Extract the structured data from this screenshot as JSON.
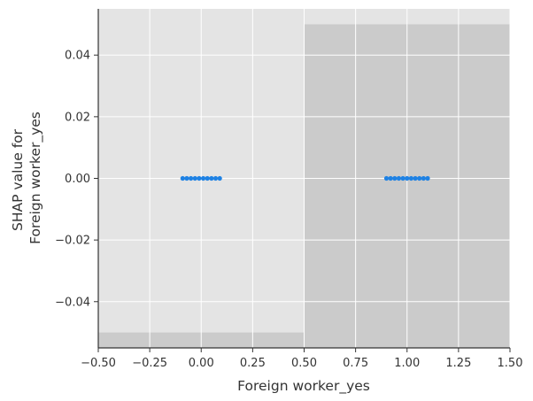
{
  "chart_data": {
    "type": "scatter",
    "title": "",
    "xlabel": "Foreign worker_yes",
    "ylabel": [
      "SHAP value for",
      "Foreign worker_yes"
    ],
    "xlim": [
      -0.5,
      1.5
    ],
    "ylim": [
      -0.055,
      0.055
    ],
    "x_ticks": [
      -0.5,
      -0.25,
      0.0,
      0.25,
      0.5,
      0.75,
      1.0,
      1.25,
      1.5
    ],
    "x_tick_labels": [
      "−0.50",
      "−0.25",
      "0.00",
      "0.25",
      "0.50",
      "0.75",
      "1.00",
      "1.25",
      "1.50"
    ],
    "y_ticks": [
      -0.04,
      -0.02,
      0.0,
      0.02,
      0.04
    ],
    "y_tick_labels": [
      "−0.04",
      "−0.02",
      "0.00",
      "0.02",
      "0.04"
    ],
    "grid": true,
    "point_color": "#1f82e4",
    "background_color": "#e4e4e4",
    "histogram_color": "#cbcbcb",
    "histogram_bins": [
      {
        "x0": -0.5,
        "x1": 0.5,
        "value": -0.05
      },
      {
        "x0": 0.5,
        "x1": 1.5,
        "value": 0.05
      }
    ],
    "series": [
      {
        "points": [
          {
            "x": -0.09,
            "y": 0.0
          },
          {
            "x": -0.07,
            "y": 0.0
          },
          {
            "x": -0.05,
            "y": 0.0
          },
          {
            "x": -0.03,
            "y": 0.0
          },
          {
            "x": -0.01,
            "y": 0.0
          },
          {
            "x": 0.01,
            "y": 0.0
          },
          {
            "x": 0.03,
            "y": 0.0
          },
          {
            "x": 0.05,
            "y": 0.0
          },
          {
            "x": 0.07,
            "y": 0.0
          },
          {
            "x": 0.09,
            "y": 0.0
          },
          {
            "x": 0.9,
            "y": 0.0
          },
          {
            "x": 0.92,
            "y": 0.0
          },
          {
            "x": 0.94,
            "y": 0.0
          },
          {
            "x": 0.96,
            "y": 0.0
          },
          {
            "x": 0.98,
            "y": 0.0
          },
          {
            "x": 1.0,
            "y": 0.0
          },
          {
            "x": 1.02,
            "y": 0.0
          },
          {
            "x": 1.04,
            "y": 0.0
          },
          {
            "x": 1.06,
            "y": 0.0
          },
          {
            "x": 1.08,
            "y": 0.0
          },
          {
            "x": 1.1,
            "y": 0.0
          }
        ]
      }
    ]
  }
}
